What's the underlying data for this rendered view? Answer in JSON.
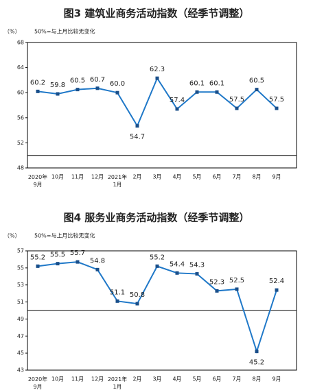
{
  "chart_data": [
    {
      "type": "line",
      "title": "图3  建筑业商务活动指数（经季节调整）",
      "unit": "（%）",
      "note": "50%=与上月比较无变化",
      "categories": [
        "2020年\n9月",
        "10月",
        "11月",
        "12月",
        "2021年\n1月",
        "2月",
        "3月",
        "4月",
        "5月",
        "6月",
        "7月",
        "8月",
        "9月"
      ],
      "values": [
        60.2,
        59.8,
        60.5,
        60.7,
        60.0,
        54.7,
        62.3,
        57.4,
        60.1,
        60.1,
        57.5,
        60.5,
        57.5
      ],
      "value_labels": [
        "60.2",
        "59.8",
        "60.5",
        "60.7",
        "60.0",
        "54.7",
        "62.3",
        "57.4",
        "60.1",
        "60.1",
        "57.5",
        "60.5",
        "57.5"
      ],
      "color": "#1f78c8",
      "ylim": [
        48,
        68
      ],
      "yticks": [
        48,
        52,
        56,
        60,
        64,
        68
      ],
      "reference_line": 50
    },
    {
      "type": "line",
      "title": "图4  服务业商务活动指数（经季节调整）",
      "unit": "（%）",
      "note": "50%=与上月比较无变化",
      "categories": [
        "2020年\n9月",
        "10月",
        "11月",
        "12月",
        "2021年\n1月",
        "2月",
        "3月",
        "4月",
        "5月",
        "6月",
        "7月",
        "8月",
        "9月"
      ],
      "values": [
        55.2,
        55.5,
        55.7,
        54.8,
        51.1,
        50.8,
        55.2,
        54.4,
        54.3,
        52.3,
        52.5,
        45.2,
        52.4
      ],
      "value_labels": [
        "55.2",
        "55.5",
        "55.7",
        "54.8",
        "51.1",
        "50.8",
        "55.2",
        "54.4",
        "54.3",
        "52.3",
        "52.5",
        "45.2",
        "52.4"
      ],
      "color": "#1f78c8",
      "ylim": [
        43,
        57
      ],
      "yticks": [
        43,
        45,
        47,
        49,
        51,
        53,
        55,
        57
      ],
      "reference_line": 50
    }
  ]
}
